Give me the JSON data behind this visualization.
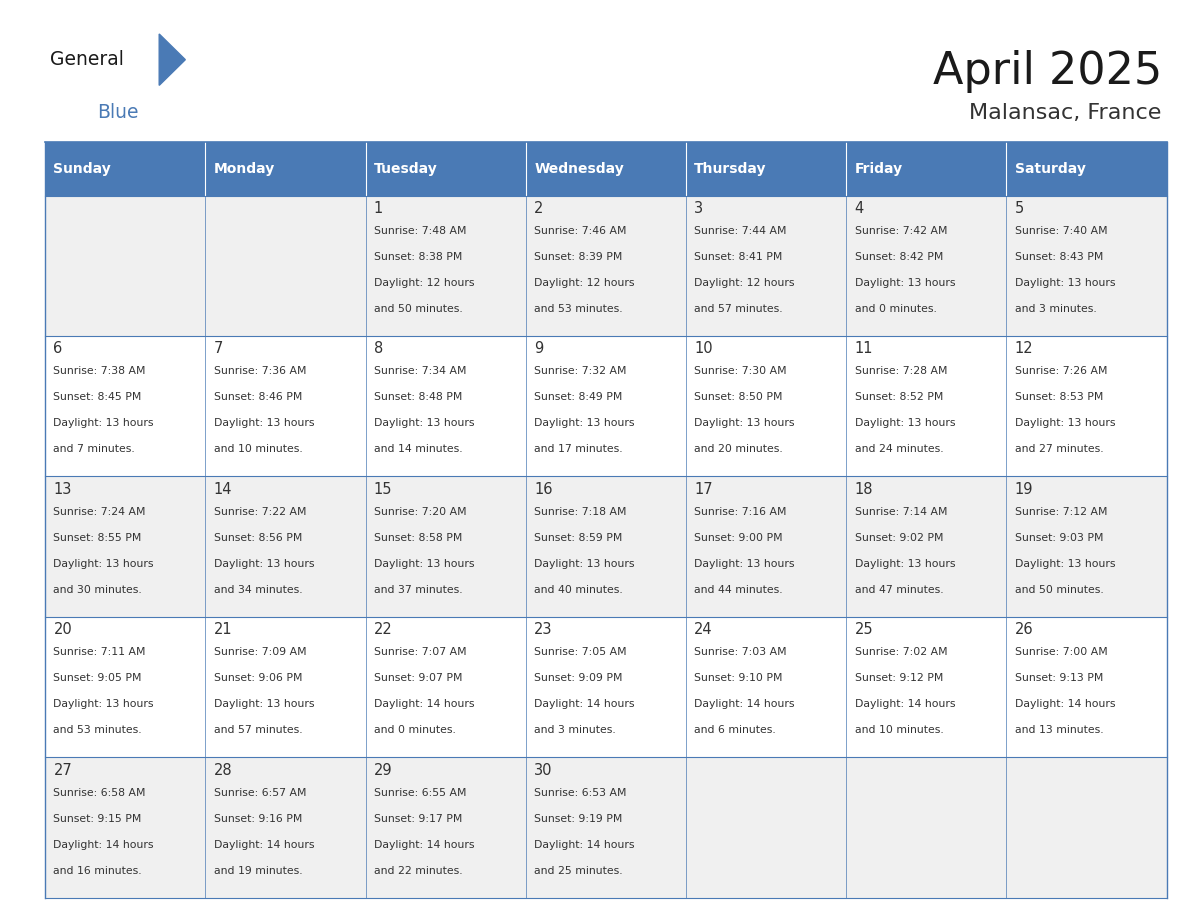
{
  "title": "April 2025",
  "subtitle": "Malansac, France",
  "header_bg": "#4a7ab5",
  "header_text": "#FFFFFF",
  "days_of_week": [
    "Sunday",
    "Monday",
    "Tuesday",
    "Wednesday",
    "Thursday",
    "Friday",
    "Saturday"
  ],
  "row_bg_even": "#f0f0f0",
  "row_bg_odd": "#FFFFFF",
  "cell_border": "#4a7ab5",
  "text_color": "#333333",
  "logo_general_color": "#1a1a1a",
  "logo_blue_color": "#4a7ab5",
  "logo_triangle_color": "#4a7ab5",
  "calendar_data": [
    [
      {
        "day": "",
        "lines": []
      },
      {
        "day": "",
        "lines": []
      },
      {
        "day": "1",
        "lines": [
          "Sunrise: 7:48 AM",
          "Sunset: 8:38 PM",
          "Daylight: 12 hours",
          "and 50 minutes."
        ]
      },
      {
        "day": "2",
        "lines": [
          "Sunrise: 7:46 AM",
          "Sunset: 8:39 PM",
          "Daylight: 12 hours",
          "and 53 minutes."
        ]
      },
      {
        "day": "3",
        "lines": [
          "Sunrise: 7:44 AM",
          "Sunset: 8:41 PM",
          "Daylight: 12 hours",
          "and 57 minutes."
        ]
      },
      {
        "day": "4",
        "lines": [
          "Sunrise: 7:42 AM",
          "Sunset: 8:42 PM",
          "Daylight: 13 hours",
          "and 0 minutes."
        ]
      },
      {
        "day": "5",
        "lines": [
          "Sunrise: 7:40 AM",
          "Sunset: 8:43 PM",
          "Daylight: 13 hours",
          "and 3 minutes."
        ]
      }
    ],
    [
      {
        "day": "6",
        "lines": [
          "Sunrise: 7:38 AM",
          "Sunset: 8:45 PM",
          "Daylight: 13 hours",
          "and 7 minutes."
        ]
      },
      {
        "day": "7",
        "lines": [
          "Sunrise: 7:36 AM",
          "Sunset: 8:46 PM",
          "Daylight: 13 hours",
          "and 10 minutes."
        ]
      },
      {
        "day": "8",
        "lines": [
          "Sunrise: 7:34 AM",
          "Sunset: 8:48 PM",
          "Daylight: 13 hours",
          "and 14 minutes."
        ]
      },
      {
        "day": "9",
        "lines": [
          "Sunrise: 7:32 AM",
          "Sunset: 8:49 PM",
          "Daylight: 13 hours",
          "and 17 minutes."
        ]
      },
      {
        "day": "10",
        "lines": [
          "Sunrise: 7:30 AM",
          "Sunset: 8:50 PM",
          "Daylight: 13 hours",
          "and 20 minutes."
        ]
      },
      {
        "day": "11",
        "lines": [
          "Sunrise: 7:28 AM",
          "Sunset: 8:52 PM",
          "Daylight: 13 hours",
          "and 24 minutes."
        ]
      },
      {
        "day": "12",
        "lines": [
          "Sunrise: 7:26 AM",
          "Sunset: 8:53 PM",
          "Daylight: 13 hours",
          "and 27 minutes."
        ]
      }
    ],
    [
      {
        "day": "13",
        "lines": [
          "Sunrise: 7:24 AM",
          "Sunset: 8:55 PM",
          "Daylight: 13 hours",
          "and 30 minutes."
        ]
      },
      {
        "day": "14",
        "lines": [
          "Sunrise: 7:22 AM",
          "Sunset: 8:56 PM",
          "Daylight: 13 hours",
          "and 34 minutes."
        ]
      },
      {
        "day": "15",
        "lines": [
          "Sunrise: 7:20 AM",
          "Sunset: 8:58 PM",
          "Daylight: 13 hours",
          "and 37 minutes."
        ]
      },
      {
        "day": "16",
        "lines": [
          "Sunrise: 7:18 AM",
          "Sunset: 8:59 PM",
          "Daylight: 13 hours",
          "and 40 minutes."
        ]
      },
      {
        "day": "17",
        "lines": [
          "Sunrise: 7:16 AM",
          "Sunset: 9:00 PM",
          "Daylight: 13 hours",
          "and 44 minutes."
        ]
      },
      {
        "day": "18",
        "lines": [
          "Sunrise: 7:14 AM",
          "Sunset: 9:02 PM",
          "Daylight: 13 hours",
          "and 47 minutes."
        ]
      },
      {
        "day": "19",
        "lines": [
          "Sunrise: 7:12 AM",
          "Sunset: 9:03 PM",
          "Daylight: 13 hours",
          "and 50 minutes."
        ]
      }
    ],
    [
      {
        "day": "20",
        "lines": [
          "Sunrise: 7:11 AM",
          "Sunset: 9:05 PM",
          "Daylight: 13 hours",
          "and 53 minutes."
        ]
      },
      {
        "day": "21",
        "lines": [
          "Sunrise: 7:09 AM",
          "Sunset: 9:06 PM",
          "Daylight: 13 hours",
          "and 57 minutes."
        ]
      },
      {
        "day": "22",
        "lines": [
          "Sunrise: 7:07 AM",
          "Sunset: 9:07 PM",
          "Daylight: 14 hours",
          "and 0 minutes."
        ]
      },
      {
        "day": "23",
        "lines": [
          "Sunrise: 7:05 AM",
          "Sunset: 9:09 PM",
          "Daylight: 14 hours",
          "and 3 minutes."
        ]
      },
      {
        "day": "24",
        "lines": [
          "Sunrise: 7:03 AM",
          "Sunset: 9:10 PM",
          "Daylight: 14 hours",
          "and 6 minutes."
        ]
      },
      {
        "day": "25",
        "lines": [
          "Sunrise: 7:02 AM",
          "Sunset: 9:12 PM",
          "Daylight: 14 hours",
          "and 10 minutes."
        ]
      },
      {
        "day": "26",
        "lines": [
          "Sunrise: 7:00 AM",
          "Sunset: 9:13 PM",
          "Daylight: 14 hours",
          "and 13 minutes."
        ]
      }
    ],
    [
      {
        "day": "27",
        "lines": [
          "Sunrise: 6:58 AM",
          "Sunset: 9:15 PM",
          "Daylight: 14 hours",
          "and 16 minutes."
        ]
      },
      {
        "day": "28",
        "lines": [
          "Sunrise: 6:57 AM",
          "Sunset: 9:16 PM",
          "Daylight: 14 hours",
          "and 19 minutes."
        ]
      },
      {
        "day": "29",
        "lines": [
          "Sunrise: 6:55 AM",
          "Sunset: 9:17 PM",
          "Daylight: 14 hours",
          "and 22 minutes."
        ]
      },
      {
        "day": "30",
        "lines": [
          "Sunrise: 6:53 AM",
          "Sunset: 9:19 PM",
          "Daylight: 14 hours",
          "and 25 minutes."
        ]
      },
      {
        "day": "",
        "lines": []
      },
      {
        "day": "",
        "lines": []
      },
      {
        "day": "",
        "lines": []
      }
    ]
  ]
}
